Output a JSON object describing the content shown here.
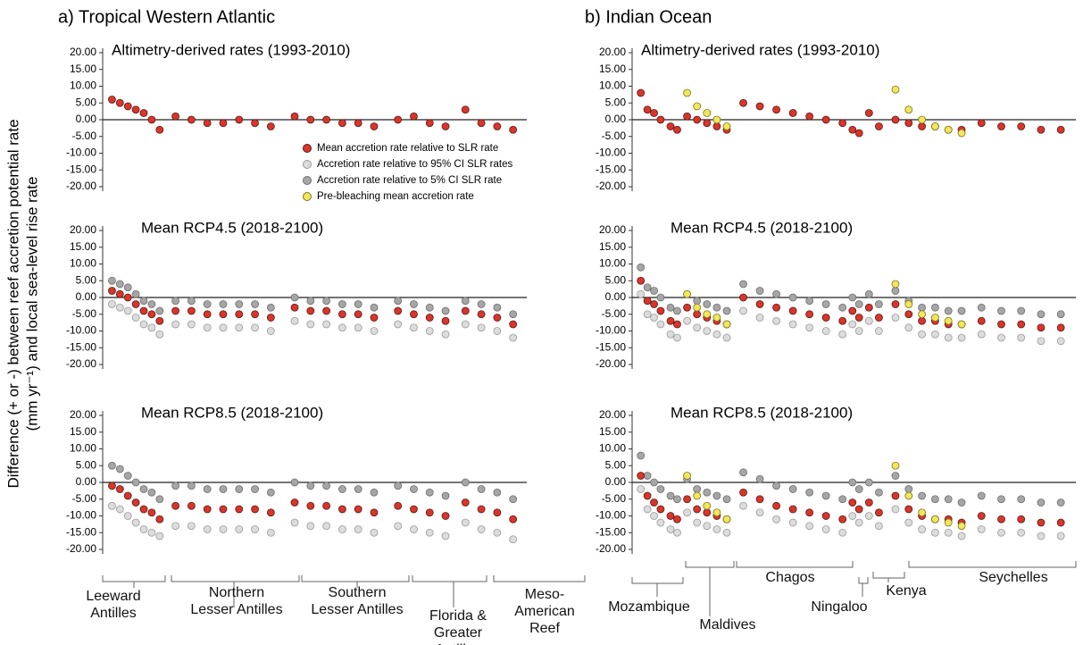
{
  "headers": [
    "a) Tropical Western Atlantic",
    "b) Indian Ocean"
  ],
  "y_label": [
    "Difference (+ or -) between reef accretion potential rate",
    "(mm yr⁻¹) and local sea-level rise rate"
  ],
  "legend": [
    {
      "name": "Mean accretion rate relative to SLR rate",
      "color": "#d9352b"
    },
    {
      "name": "Accretion rate relative to 95% CI SLR rates",
      "color": "#dcdcdc"
    },
    {
      "name": "Accretion rate relative to 5% CI SLR rate",
      "color": "#a6a6a6"
    },
    {
      "name": "Pre-bleaching mean accretion rate",
      "color": "#f2e65a"
    }
  ],
  "regions": {
    "left": [
      "Leeward\nAntilles",
      "Northern\nLesser Antilles",
      "Southern\nLesser Antilles",
      "Florida &\nGreater\nAntilles",
      "Meso-\nAmerican\nReef"
    ],
    "right": [
      "Mozambique",
      "Maldives",
      "Chagos",
      "Ningaloo",
      "Kenya",
      "Seychelles"
    ]
  },
  "chart_data": [
    {
      "type": "scatter",
      "title": "Altimetry-derived rates (1993-2010)",
      "xlim": [
        0,
        105
      ],
      "ylim": [
        -20,
        20
      ],
      "hline": 0,
      "yticks": [
        {
          "value": 20,
          "label": "20.00"
        },
        {
          "value": 15,
          "label": "15.00"
        },
        {
          "value": 10,
          "label": "10.00"
        },
        {
          "value": 5,
          "label": "5.00"
        },
        {
          "value": 0,
          "label": "0.00"
        },
        {
          "value": -5,
          "label": "-5.00"
        },
        {
          "value": -10,
          "label": "-10.00"
        },
        {
          "value": -15,
          "label": "-15.00"
        },
        {
          "value": -20,
          "label": "-20.00"
        }
      ],
      "x": [
        1,
        3,
        5,
        7,
        9,
        11,
        13,
        17,
        21,
        25,
        29,
        33,
        37,
        41,
        47,
        51,
        55,
        59,
        63,
        67,
        73,
        77,
        81,
        85,
        90,
        94,
        98,
        102
      ],
      "series": [
        {
          "color": "#d9352b",
          "values": [
            6,
            5,
            4,
            3,
            2,
            0,
            -3,
            1,
            0,
            -1,
            -1,
            0,
            -1,
            -2,
            1,
            0,
            0,
            -1,
            -1,
            -2,
            0,
            1,
            -1,
            -2,
            3,
            -1,
            -2,
            -3
          ]
        }
      ]
    },
    {
      "type": "scatter",
      "title": "Altimetry-derived rates (1993-2010)",
      "xlim": [
        0,
        132
      ],
      "ylim": [
        -20,
        20
      ],
      "hline": 0,
      "yticks": [
        {
          "value": 20,
          "label": "20.00"
        },
        {
          "value": 15,
          "label": "15.00"
        },
        {
          "value": 10,
          "label": "10.00"
        },
        {
          "value": 5,
          "label": "5.00"
        },
        {
          "value": 0,
          "label": "0.00"
        },
        {
          "value": -5,
          "label": "-5.00"
        },
        {
          "value": -10,
          "label": "-10.00"
        },
        {
          "value": -15,
          "label": "-15.00"
        },
        {
          "value": -20,
          "label": "-20.00"
        }
      ],
      "x": [
        1,
        3,
        5,
        7,
        10,
        12,
        15,
        18,
        21,
        24,
        27,
        32,
        37,
        42,
        47,
        52,
        57,
        62,
        65,
        67,
        70,
        73,
        78,
        82,
        86,
        90,
        94,
        98,
        104,
        110,
        116,
        122,
        128
      ],
      "series": [
        {
          "color": "#d9352b",
          "values": [
            8,
            3,
            2,
            0,
            -2,
            -3,
            1,
            0,
            -1,
            -2,
            -3,
            5,
            4,
            3,
            2,
            1,
            0,
            -1,
            -3,
            -4,
            2,
            -2,
            0,
            -1,
            -2,
            -2,
            -3,
            -3,
            -1,
            -2,
            -2,
            -3,
            -3
          ]
        },
        {
          "color": "#f2e65a",
          "values": [
            null,
            null,
            null,
            null,
            null,
            null,
            8,
            4,
            2,
            0,
            -2,
            null,
            null,
            null,
            null,
            null,
            null,
            null,
            null,
            null,
            null,
            null,
            9,
            3,
            0,
            -2,
            -3,
            -4,
            null,
            null,
            null,
            null,
            null
          ]
        }
      ]
    },
    {
      "type": "scatter",
      "title": "Mean RCP4.5 (2018-2100)",
      "xlim": [
        0,
        105
      ],
      "ylim": [
        -20,
        20
      ],
      "hline": 0,
      "yticks": [
        {
          "value": 20,
          "label": "20.00"
        },
        {
          "value": 15,
          "label": "15.00"
        },
        {
          "value": 10,
          "label": "10.00"
        },
        {
          "value": 5,
          "label": "5.00"
        },
        {
          "value": 0,
          "label": "0.00"
        },
        {
          "value": -5,
          "label": "-5.00"
        },
        {
          "value": -10,
          "label": "-10.00"
        },
        {
          "value": -15,
          "label": "-15.00"
        },
        {
          "value": -20,
          "label": "-20.00"
        }
      ],
      "x": [
        1,
        3,
        5,
        7,
        9,
        11,
        13,
        17,
        21,
        25,
        29,
        33,
        37,
        41,
        47,
        51,
        55,
        59,
        63,
        67,
        73,
        77,
        81,
        85,
        90,
        94,
        98,
        102
      ],
      "series": [
        {
          "color": "#dcdcdc",
          "values": [
            -2,
            -3,
            -4,
            -6,
            -8,
            -9,
            -11,
            -8,
            -8,
            -9,
            -9,
            -9,
            -9,
            -10,
            -7,
            -8,
            -8,
            -9,
            -9,
            -10,
            -8,
            -9,
            -10,
            -11,
            -8,
            -9,
            -10,
            -12
          ]
        },
        {
          "color": "#a6a6a6",
          "values": [
            5,
            4,
            3,
            1,
            -1,
            -2,
            -4,
            -1,
            -1,
            -2,
            -2,
            -2,
            -2,
            -3,
            0,
            -1,
            -1,
            -2,
            -2,
            -3,
            -1,
            -2,
            -3,
            -4,
            -1,
            -2,
            -3,
            -5
          ]
        },
        {
          "color": "#d9352b",
          "values": [
            2,
            1,
            0,
            -2,
            -4,
            -5,
            -7,
            -4,
            -4,
            -5,
            -5,
            -5,
            -5,
            -6,
            -3,
            -4,
            -4,
            -5,
            -5,
            -6,
            -4,
            -5,
            -6,
            -7,
            -4,
            -5,
            -6,
            -8
          ]
        }
      ]
    },
    {
      "type": "scatter",
      "title": "Mean RCP4.5 (2018-2100)",
      "xlim": [
        0,
        132
      ],
      "ylim": [
        -20,
        20
      ],
      "hline": 0,
      "yticks": [
        {
          "value": 20,
          "label": "20.00"
        },
        {
          "value": 15,
          "label": "15.00"
        },
        {
          "value": 10,
          "label": "10.00"
        },
        {
          "value": 5,
          "label": "5.00"
        },
        {
          "value": 0,
          "label": "0.00"
        },
        {
          "value": -5,
          "label": "-5.00"
        },
        {
          "value": -10,
          "label": "-10.00"
        },
        {
          "value": -15,
          "label": "-15.00"
        },
        {
          "value": -20,
          "label": "-20.00"
        }
      ],
      "x": [
        1,
        3,
        5,
        7,
        10,
        12,
        15,
        18,
        21,
        24,
        27,
        32,
        37,
        42,
        47,
        52,
        57,
        62,
        65,
        67,
        70,
        73,
        78,
        82,
        86,
        90,
        94,
        98,
        104,
        110,
        116,
        122,
        128
      ],
      "series": [
        {
          "color": "#dcdcdc",
          "values": [
            1,
            -5,
            -6,
            -8,
            -11,
            -12,
            -7,
            -9,
            -10,
            -11,
            -12,
            -4,
            -6,
            -7,
            -8,
            -9,
            -10,
            -11,
            -8,
            -10,
            -7,
            -10,
            -6,
            -9,
            -11,
            -11,
            -12,
            -12,
            -11,
            -12,
            -12,
            -13,
            -13
          ]
        },
        {
          "color": "#a6a6a6",
          "values": [
            9,
            3,
            2,
            0,
            -3,
            -4,
            1,
            -1,
            -2,
            -3,
            -4,
            4,
            2,
            1,
            0,
            -1,
            -2,
            -3,
            0,
            -2,
            1,
            -2,
            2,
            -1,
            -3,
            -3,
            -4,
            -4,
            -3,
            -4,
            -4,
            -5,
            -5
          ]
        },
        {
          "color": "#d9352b",
          "values": [
            5,
            -1,
            -2,
            -4,
            -7,
            -8,
            -3,
            -5,
            -6,
            -7,
            -8,
            0,
            -2,
            -3,
            -4,
            -5,
            -6,
            -7,
            -4,
            -6,
            -3,
            -6,
            -2,
            -5,
            -7,
            -7,
            -8,
            -8,
            -7,
            -8,
            -8,
            -9,
            -9
          ]
        },
        {
          "color": "#f2e65a",
          "values": [
            null,
            null,
            null,
            null,
            null,
            null,
            1,
            -3,
            -5,
            -6,
            -8,
            null,
            null,
            null,
            null,
            null,
            null,
            null,
            null,
            null,
            null,
            null,
            4,
            -2,
            -5,
            -6,
            -7,
            -8,
            null,
            null,
            null,
            null,
            null
          ]
        }
      ]
    },
    {
      "type": "scatter",
      "title": "Mean RCP8.5 (2018-2100)",
      "xlim": [
        0,
        105
      ],
      "ylim": [
        -20,
        20
      ],
      "hline": 0,
      "yticks": [
        {
          "value": 20,
          "label": "20.00"
        },
        {
          "value": 15,
          "label": "15.00"
        },
        {
          "value": 10,
          "label": "10.00"
        },
        {
          "value": 5,
          "label": "5.00"
        },
        {
          "value": 0,
          "label": "0.00"
        },
        {
          "value": -5,
          "label": "-5.00"
        },
        {
          "value": -10,
          "label": "-10.00"
        },
        {
          "value": -15,
          "label": "-15.00"
        },
        {
          "value": -20,
          "label": "-20.00"
        }
      ],
      "x": [
        1,
        3,
        5,
        7,
        9,
        11,
        13,
        17,
        21,
        25,
        29,
        33,
        37,
        41,
        47,
        51,
        55,
        59,
        63,
        67,
        73,
        77,
        81,
        85,
        90,
        94,
        98,
        102
      ],
      "series": [
        {
          "color": "#dcdcdc",
          "values": [
            -7,
            -8,
            -10,
            -12,
            -14,
            -15,
            -16,
            -13,
            -13,
            -14,
            -14,
            -14,
            -14,
            -15,
            -12,
            -13,
            -13,
            -14,
            -14,
            -15,
            -13,
            -14,
            -15,
            -16,
            -12,
            -14,
            -15,
            -17
          ]
        },
        {
          "color": "#a6a6a6",
          "values": [
            5,
            4,
            2,
            0,
            -2,
            -3,
            -5,
            -1,
            -1,
            -2,
            -2,
            -2,
            -2,
            -3,
            0,
            -1,
            -1,
            -2,
            -2,
            -3,
            -1,
            -2,
            -3,
            -4,
            0,
            -2,
            -3,
            -5
          ]
        },
        {
          "color": "#d9352b",
          "values": [
            -1,
            -2,
            -4,
            -6,
            -8,
            -9,
            -11,
            -7,
            -7,
            -8,
            -8,
            -8,
            -8,
            -9,
            -6,
            -7,
            -7,
            -8,
            -8,
            -9,
            -7,
            -8,
            -9,
            -10,
            -6,
            -8,
            -9,
            -11
          ]
        }
      ]
    },
    {
      "type": "scatter",
      "title": "Mean RCP8.5 (2018-2100)",
      "xlim": [
        0,
        132
      ],
      "ylim": [
        -20,
        20
      ],
      "hline": 0,
      "yticks": [
        {
          "value": 20,
          "label": "20.00"
        },
        {
          "value": 15,
          "label": "15.00"
        },
        {
          "value": 10,
          "label": "10.00"
        },
        {
          "value": 5,
          "label": "5.00"
        },
        {
          "value": 0,
          "label": "0.00"
        },
        {
          "value": -5,
          "label": "-5.00"
        },
        {
          "value": -10,
          "label": "-10.00"
        },
        {
          "value": -15,
          "label": "-15.00"
        },
        {
          "value": -20,
          "label": "-20.00"
        }
      ],
      "x": [
        1,
        3,
        5,
        7,
        10,
        12,
        15,
        18,
        21,
        24,
        27,
        32,
        37,
        42,
        47,
        52,
        57,
        62,
        65,
        67,
        70,
        73,
        78,
        82,
        86,
        90,
        94,
        98,
        104,
        110,
        116,
        122,
        128
      ],
      "series": [
        {
          "color": "#dcdcdc",
          "values": [
            -2,
            -8,
            -10,
            -12,
            -14,
            -15,
            -9,
            -12,
            -13,
            -14,
            -15,
            -7,
            -9,
            -11,
            -12,
            -13,
            -14,
            -15,
            -10,
            -12,
            -10,
            -13,
            -8,
            -12,
            -14,
            -15,
            -15,
            -16,
            -14,
            -15,
            -15,
            -16,
            -16
          ]
        },
        {
          "color": "#a6a6a6",
          "values": [
            8,
            2,
            0,
            -2,
            -4,
            -5,
            1,
            -2,
            -3,
            -4,
            -5,
            3,
            1,
            -1,
            -2,
            -3,
            -4,
            -5,
            0,
            -2,
            0,
            -3,
            2,
            -2,
            -4,
            -5,
            -5,
            -6,
            -4,
            -5,
            -5,
            -6,
            -6
          ]
        },
        {
          "color": "#d9352b",
          "values": [
            2,
            -4,
            -6,
            -8,
            -10,
            -11,
            -5,
            -8,
            -9,
            -10,
            -11,
            -3,
            -5,
            -7,
            -8,
            -9,
            -10,
            -11,
            -6,
            -8,
            -6,
            -9,
            -4,
            -8,
            -10,
            -11,
            -11,
            -12,
            -10,
            -11,
            -11,
            -12,
            -12
          ]
        },
        {
          "color": "#f2e65a",
          "values": [
            null,
            null,
            null,
            null,
            null,
            null,
            2,
            -4,
            -7,
            -9,
            -11,
            null,
            null,
            null,
            null,
            null,
            null,
            null,
            null,
            null,
            null,
            null,
            5,
            -4,
            -9,
            -11,
            -12,
            -13,
            null,
            null,
            null,
            null,
            null
          ]
        }
      ]
    }
  ]
}
